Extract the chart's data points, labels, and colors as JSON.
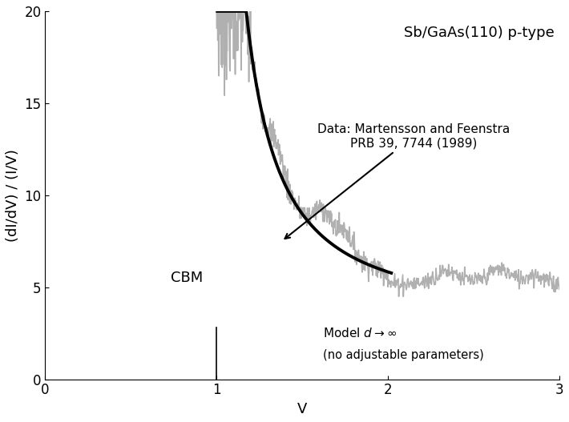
{
  "title": "Sb/GaAs(110) p-type",
  "xlabel": "V",
  "ylabel": "(dI/dV) / (I/V)",
  "xlim": [
    0,
    3
  ],
  "ylim": [
    0,
    20
  ],
  "xticks": [
    0,
    1,
    2,
    3
  ],
  "yticks": [
    0,
    5,
    10,
    15,
    20
  ],
  "cbm_x": 1.0,
  "cbm_label": "CBM",
  "annotation_text1": "Data: Martensson and Feenstra",
  "annotation_text2": "PRB 39, 7744 (1989)",
  "model_label_text1": "Model $d \\rightarrow \\infty$",
  "model_label_text2": "(no adjustable parameters)",
  "data_color": "#b0b0b0",
  "model_color": "#000000",
  "background_color": "#ffffff",
  "data_linewidth": 1.2,
  "model_linewidth": 2.8,
  "title_fontsize": 13,
  "label_fontsize": 13,
  "tick_fontsize": 12,
  "cbm_fontsize": 13,
  "annot_fontsize": 11,
  "model_text_fontsize": 11
}
